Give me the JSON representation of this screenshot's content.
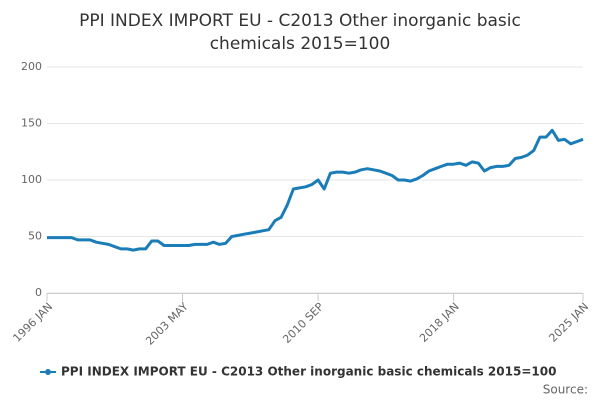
{
  "chart_data": {
    "type": "line",
    "title": [
      "PPI INDEX IMPORT EU - C2013 Other inorganic basic",
      "chemicals 2015=100"
    ],
    "source": "Source:",
    "categories": [
      "1996 JAN",
      null,
      null,
      null,
      null,
      null,
      null,
      null,
      null,
      null,
      null,
      null,
      null,
      null,
      null,
      null,
      null,
      null,
      null,
      null,
      null,
      null,
      "2003 MAY",
      null,
      null,
      null,
      null,
      null,
      null,
      null,
      null,
      null,
      null,
      null,
      null,
      null,
      null,
      null,
      null,
      null,
      null,
      null,
      null,
      null,
      "2010 SEP",
      null,
      null,
      null,
      null,
      null,
      null,
      null,
      null,
      null,
      null,
      null,
      null,
      null,
      null,
      null,
      null,
      null,
      null,
      null,
      null,
      null,
      "2018 JAN",
      null,
      null,
      null,
      null,
      null,
      null,
      null,
      null,
      null,
      null,
      null,
      null,
      null,
      null,
      null,
      null,
      null,
      null,
      null,
      null,
      "2025 JAN"
    ],
    "series": [
      {
        "name": "PPI INDEX IMPORT EU - C2013 Other inorganic basic chemicals 2015=100",
        "color": "#1a7db8",
        "values": [
          49,
          49,
          49,
          49,
          49,
          47,
          47,
          47,
          45,
          44,
          43,
          41,
          39,
          39,
          38,
          39,
          39,
          46,
          46,
          42,
          42,
          42,
          42,
          42,
          43,
          43,
          43,
          45,
          43,
          44,
          50,
          51,
          52,
          53,
          54,
          55,
          56,
          64,
          67,
          78,
          92,
          93,
          94,
          96,
          100,
          92,
          106,
          107,
          107,
          106,
          107,
          109,
          110,
          109,
          108,
          106,
          104,
          100,
          100,
          99,
          101,
          104,
          108,
          110,
          112,
          114,
          114,
          115,
          113,
          116,
          115,
          108,
          111,
          112,
          112,
          113,
          119,
          120,
          122,
          126,
          138,
          138,
          144,
          135,
          136,
          132,
          134,
          136
        ]
      }
    ],
    "ylim": [
      0,
      200
    ],
    "yticks": [
      0,
      50,
      100,
      150,
      200
    ],
    "grid": true
  }
}
